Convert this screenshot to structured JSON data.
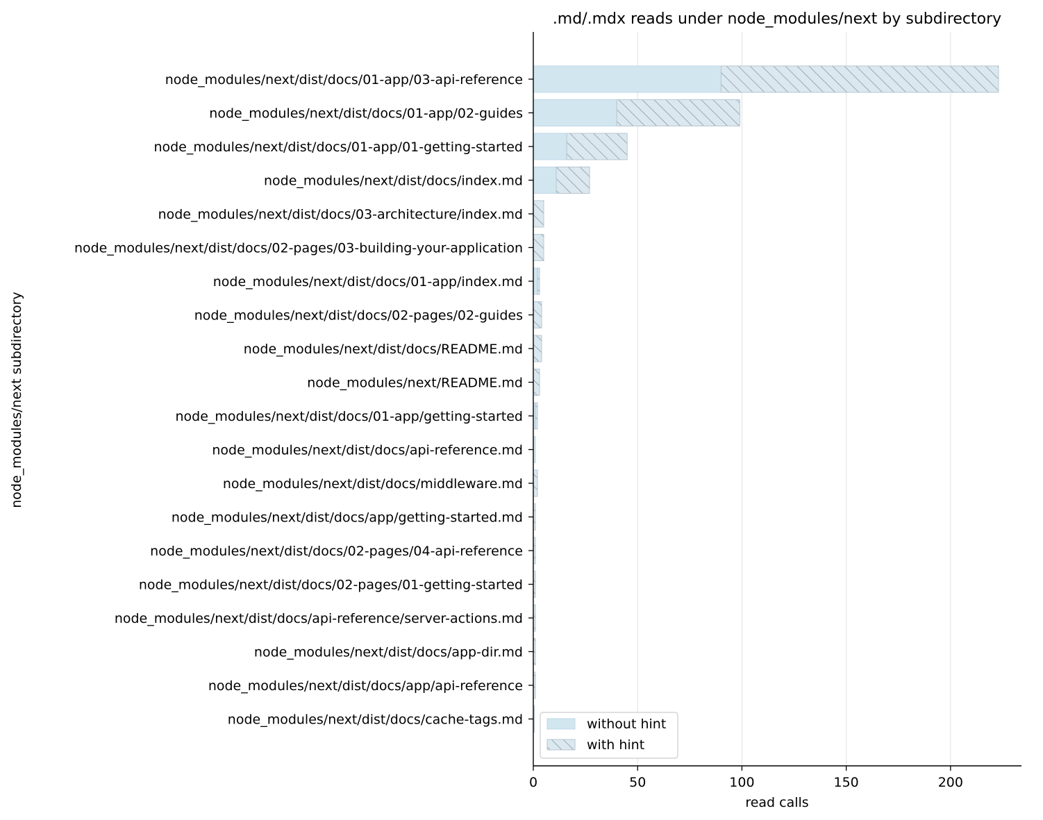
{
  "chart_data": {
    "type": "bar",
    "orientation": "horizontal",
    "stacked": true,
    "title": ".md/.mdx reads under node_modules/next by subdirectory",
    "xlabel": "read calls",
    "ylabel": "node_modules/next subdirectory",
    "xlim": [
      0,
      234
    ],
    "xticks": [
      0,
      50,
      100,
      150,
      200
    ],
    "grid": "x",
    "legend_position": "lower-left",
    "categories": [
      "node_modules/next/dist/docs/01-app/03-api-reference",
      "node_modules/next/dist/docs/01-app/02-guides",
      "node_modules/next/dist/docs/01-app/01-getting-started",
      "node_modules/next/dist/docs/index.md",
      "node_modules/next/dist/docs/03-architecture/index.md",
      "node_modules/next/dist/docs/02-pages/03-building-your-application",
      "node_modules/next/dist/docs/01-app/index.md",
      "node_modules/next/dist/docs/02-pages/02-guides",
      "node_modules/next/dist/docs/README.md",
      "node_modules/next/README.md",
      "node_modules/next/dist/docs/01-app/getting-started",
      "node_modules/next/dist/docs/api-reference.md",
      "node_modules/next/dist/docs/middleware.md",
      "node_modules/next/dist/docs/app/getting-started.md",
      "node_modules/next/dist/docs/02-pages/04-api-reference",
      "node_modules/next/dist/docs/02-pages/01-getting-started",
      "node_modules/next/dist/docs/api-reference/server-actions.md",
      "node_modules/next/dist/docs/app-dir.md",
      "node_modules/next/dist/docs/app/api-reference",
      "node_modules/next/dist/docs/cache-tags.md"
    ],
    "series": [
      {
        "name": "without hint",
        "color": "#d2e6f0",
        "edge_color": "#bdd7e7",
        "values": [
          90,
          40,
          16,
          11,
          0,
          0,
          2,
          0,
          0,
          0,
          1,
          1,
          0,
          0,
          0,
          0,
          0,
          0,
          0,
          0
        ]
      },
      {
        "name": "with hint",
        "color": "#dce8f0",
        "hatch_color": "#8a9aa6",
        "values": [
          133,
          59,
          29,
          16,
          5,
          5,
          1,
          4,
          4,
          3,
          1,
          0,
          2,
          1,
          1,
          1,
          1,
          1,
          1,
          0.5
        ]
      }
    ]
  }
}
